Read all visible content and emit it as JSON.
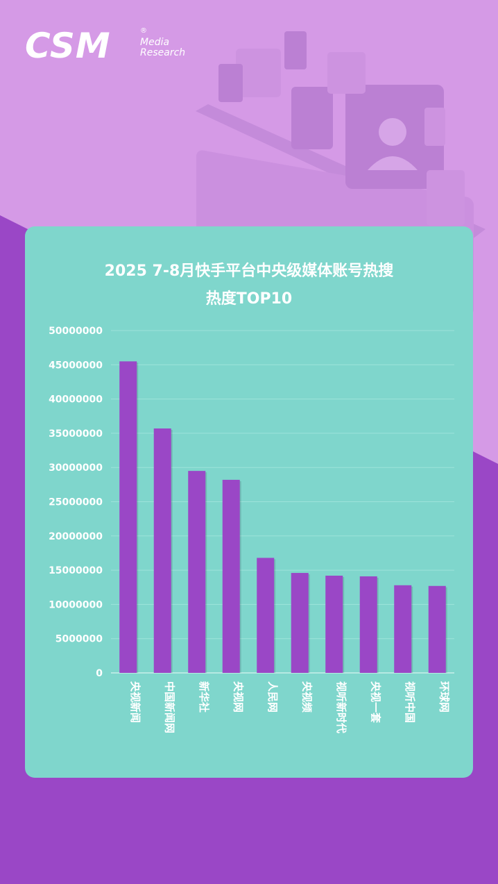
{
  "brand": {
    "logo_text": "CSM",
    "logo_sub_1": "Media",
    "logo_sub_2": "Research",
    "logo_mark": "®"
  },
  "colors": {
    "background": "#9a47c6",
    "background_light": "#d59ae6",
    "card": "#7fd6cc",
    "bar": "#9a47c6",
    "text": "#ffffff"
  },
  "chart_data": {
    "type": "bar",
    "title_line1": "2025 7-8月快手平台中央级媒体账号热搜",
    "title_line2": "热度TOP10",
    "categories": [
      "央视新闻",
      "中国新闻网",
      "新华社",
      "央视网",
      "人民网",
      "央视频",
      "视听新时代",
      "央视一套",
      "视听中国",
      "环球网"
    ],
    "values": [
      45500000,
      35700000,
      29500000,
      28200000,
      16800000,
      14600000,
      14200000,
      14100000,
      12800000,
      12700000
    ],
    "ylim": [
      0,
      50000000
    ],
    "yticks": [
      "0",
      "5000000",
      "10000000",
      "15000000",
      "20000000",
      "25000000",
      "30000000",
      "35000000",
      "40000000",
      "45000000",
      "50000000"
    ],
    "grid": true,
    "legend": "none",
    "xlabel": "",
    "ylabel": ""
  }
}
